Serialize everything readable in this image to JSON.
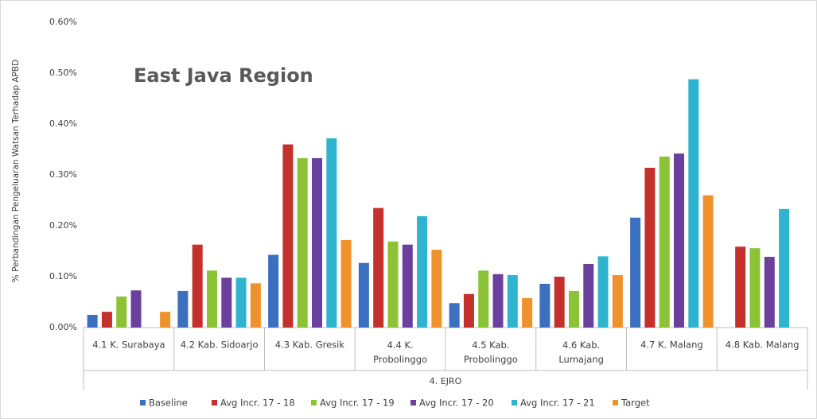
{
  "chart_data": {
    "type": "bar",
    "annotation": "East Java Region",
    "y_label": "% Perbandingan Pengeluaran Watsan Terhadap APBD",
    "x_group_label": "4. EJRO",
    "categories": [
      "4.1 K. Surabaya",
      "4.2 Kab. Sidoarjo",
      "4.3 Kab. Gresik",
      "4.4 K.\nProbolinggo",
      "4.5 Kab.\nProbolinggo",
      "4.6 Kab.\nLumajang",
      "4.7 K. Malang",
      "4.8 Kab. Malang"
    ],
    "series": [
      {
        "name": "Baseline",
        "color": "#3b6fc0",
        "values": [
          0.025,
          0.072,
          0.143,
          0.127,
          0.048,
          0.086,
          0.216,
          null
        ]
      },
      {
        "name": "Avg Incr. 17 - 18",
        "color": "#c4302b",
        "values": [
          0.031,
          0.163,
          0.36,
          0.235,
          0.066,
          0.1,
          0.314,
          0.159
        ]
      },
      {
        "name": "Avg Incr. 17 - 19",
        "color": "#8cc236",
        "values": [
          0.061,
          0.112,
          0.333,
          0.169,
          0.112,
          0.072,
          0.336,
          0.156
        ]
      },
      {
        "name": "Avg Incr. 17 - 20",
        "color": "#6b3f9c",
        "values": [
          0.073,
          0.098,
          0.333,
          0.163,
          0.105,
          0.125,
          0.342,
          0.139
        ]
      },
      {
        "name": "Avg Incr. 17 - 21",
        "color": "#2fb4cf",
        "values": [
          null,
          0.098,
          0.372,
          0.219,
          0.103,
          0.14,
          0.488,
          0.233
        ]
      },
      {
        "name": "Target",
        "color": "#f0922b",
        "values": [
          0.031,
          0.087,
          0.172,
          0.153,
          0.058,
          0.103,
          0.26,
          null
        ]
      }
    ],
    "ylim": [
      0,
      0.6
    ],
    "yticks": [
      {
        "value": 0,
        "label": "0.00%"
      },
      {
        "value": 0.1,
        "label": "0.10%"
      },
      {
        "value": 0.2,
        "label": "0.20%"
      },
      {
        "value": 0.3,
        "label": "0.30%"
      },
      {
        "value": 0.4,
        "label": "0.40%"
      },
      {
        "value": 0.5,
        "label": "0.50%"
      },
      {
        "value": 0.6,
        "label": "0.60%"
      }
    ],
    "grid": false
  }
}
